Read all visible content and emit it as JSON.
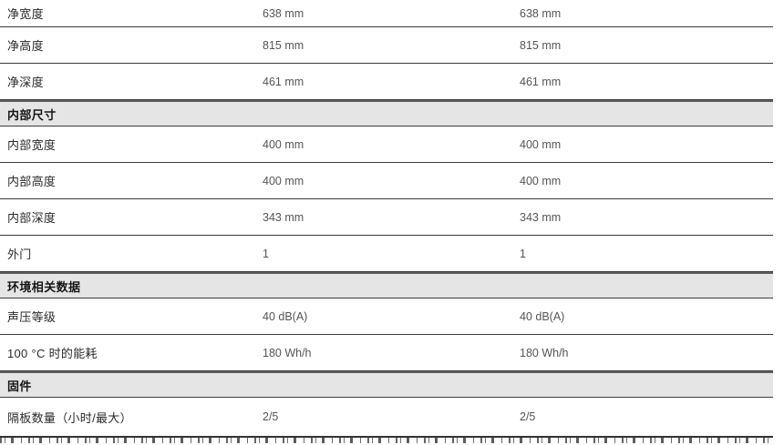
{
  "table": {
    "rows": [
      {
        "type": "data",
        "label": "净宽度",
        "values": [
          "638 mm",
          "638 mm"
        ]
      },
      {
        "type": "data",
        "label": "净高度",
        "values": [
          "815 mm",
          "815 mm"
        ]
      },
      {
        "type": "data",
        "label": "净深度",
        "values": [
          "461 mm",
          "461 mm"
        ]
      },
      {
        "type": "section",
        "label": "内部尺寸"
      },
      {
        "type": "data",
        "label": "内部宽度",
        "values": [
          "400 mm",
          "400 mm"
        ]
      },
      {
        "type": "data",
        "label": "内部高度",
        "values": [
          "400 mm",
          "400 mm"
        ]
      },
      {
        "type": "data",
        "label": "内部深度",
        "values": [
          "343 mm",
          "343 mm"
        ]
      },
      {
        "type": "data",
        "label": "外门",
        "values": [
          "1",
          "1"
        ]
      },
      {
        "type": "section",
        "label": "环境相关数据"
      },
      {
        "type": "data",
        "label": "声压等级",
        "values": [
          "40 dB(A)",
          "40 dB(A)"
        ]
      },
      {
        "type": "data",
        "label": "100 °C 时的能耗",
        "values": [
          "180 Wh/h",
          "180 Wh/h"
        ]
      },
      {
        "type": "section",
        "label": "固件"
      },
      {
        "type": "data",
        "label": "隔板数量（小时/最大）",
        "values": [
          "2/5",
          "2/5"
        ]
      }
    ]
  },
  "colors": {
    "section_background": "#e5e5e5",
    "row_border": "#3a3a3a",
    "section_top_border": "#5d5d5d",
    "label_text": "#2b2b2b",
    "value_text": "#555555"
  }
}
